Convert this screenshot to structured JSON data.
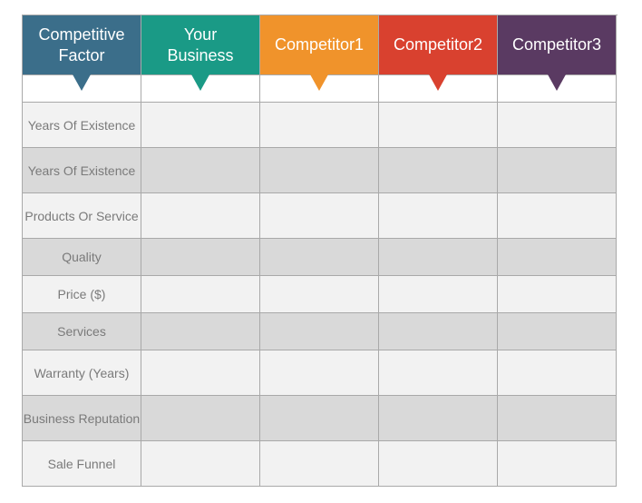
{
  "colors": {
    "factor": "#3b6e8a",
    "your_business": "#1a9a86",
    "competitor1": "#f0932b",
    "competitor2": "#d9412f",
    "competitor3": "#5a3a62"
  },
  "table": {
    "headers": [
      {
        "label": "Competitive Factor",
        "color": "#3b6e8a"
      },
      {
        "label": "Your Business",
        "color": "#1a9a86"
      },
      {
        "label": "Competitor1",
        "color": "#f0932b"
      },
      {
        "label": "Competitor2",
        "color": "#d9412f"
      },
      {
        "label": "Competitor3",
        "color": "#5a3a62"
      }
    ],
    "rows": [
      {
        "factor": "Years Of Existence",
        "cells": [
          "",
          "",
          "",
          ""
        ]
      },
      {
        "factor": "Years Of Existence",
        "cells": [
          "",
          "",
          "",
          ""
        ]
      },
      {
        "factor": "Products Or Service",
        "cells": [
          "",
          "",
          "",
          ""
        ]
      },
      {
        "factor": "Quality",
        "cells": [
          "",
          "",
          "",
          ""
        ]
      },
      {
        "factor": "Price ($)",
        "cells": [
          "",
          "",
          "",
          ""
        ]
      },
      {
        "factor": "Services",
        "cells": [
          "",
          "",
          "",
          ""
        ]
      },
      {
        "factor": "Warranty (Years)",
        "cells": [
          "",
          "",
          "",
          ""
        ]
      },
      {
        "factor": "Business Reputation",
        "cells": [
          "",
          "",
          "",
          ""
        ]
      },
      {
        "factor": "Sale Funnel",
        "cells": [
          "",
          "",
          "",
          ""
        ]
      }
    ]
  }
}
